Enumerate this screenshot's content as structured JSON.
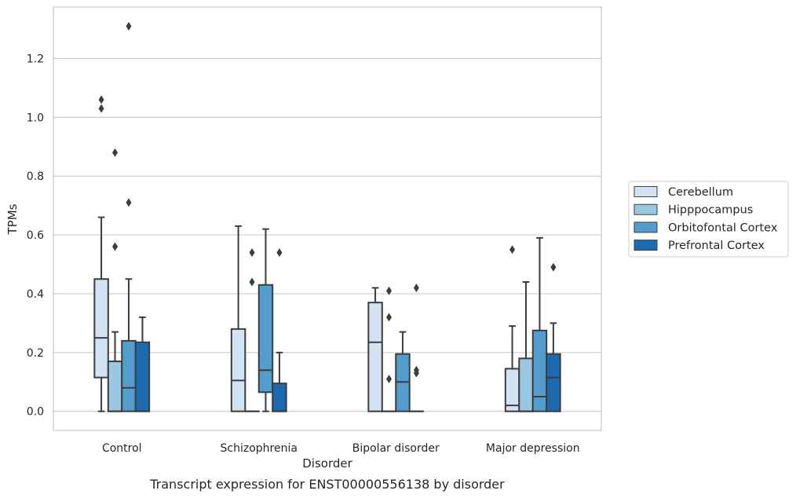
{
  "chart_data": {
    "type": "box",
    "title": "",
    "caption": "Transcript expression for ENST00000556138 by disorder",
    "xlabel": "Disorder",
    "ylabel": "TPMs",
    "ylim": [
      -0.065,
      1.375
    ],
    "yticks": [
      0.0,
      0.2,
      0.4,
      0.6,
      0.8,
      1.0,
      1.2
    ],
    "ytick_labels": [
      "0.0",
      "0.2",
      "0.4",
      "0.6",
      "0.8",
      "1.0",
      "1.2"
    ],
    "grid": true,
    "legend_position": "right",
    "categories": [
      "Control",
      "Schizophrenia",
      "Bipolar disorder",
      "Major depression"
    ],
    "series": [
      {
        "name": "Cerebellum",
        "color": "#d2e3f3",
        "boxes": [
          {
            "whislo": 0.0,
            "q1": 0.115,
            "med": 0.25,
            "q3": 0.45,
            "whishi": 0.66,
            "fliers": [
              1.03,
              1.06
            ]
          },
          {
            "whislo": 0.0,
            "q1": 0.0,
            "med": 0.105,
            "q3": 0.28,
            "whishi": 0.63,
            "fliers": []
          },
          {
            "whislo": 0.0,
            "q1": 0.0,
            "med": 0.235,
            "q3": 0.37,
            "whishi": 0.42,
            "fliers": []
          },
          {
            "whislo": 0.0,
            "q1": 0.0,
            "med": 0.02,
            "q3": 0.145,
            "whishi": 0.29,
            "fliers": [
              0.55
            ]
          }
        ]
      },
      {
        "name": "Hipppocampus",
        "color": "#9ac8e0",
        "boxes": [
          {
            "whislo": 0.0,
            "q1": 0.0,
            "med": 0.0,
            "q3": 0.17,
            "whishi": 0.27,
            "fliers": [
              0.56,
              0.88
            ]
          },
          {
            "whislo": 0.0,
            "q1": 0.0,
            "med": 0.0,
            "q3": 0.0,
            "whishi": 0.0,
            "fliers": [
              0.44,
              0.54
            ]
          },
          {
            "whislo": 0.0,
            "q1": 0.0,
            "med": 0.0,
            "q3": 0.0,
            "whishi": 0.0,
            "fliers": [
              0.11,
              0.32,
              0.41
            ]
          },
          {
            "whislo": 0.0,
            "q1": 0.0,
            "med": 0.0,
            "q3": 0.18,
            "whishi": 0.44,
            "fliers": []
          }
        ]
      },
      {
        "name": "Orbitofontal Cortex",
        "color": "#529dcc",
        "boxes": [
          {
            "whislo": 0.0,
            "q1": 0.0,
            "med": 0.08,
            "q3": 0.24,
            "whishi": 0.45,
            "fliers": [
              0.71,
              1.31
            ]
          },
          {
            "whislo": 0.0,
            "q1": 0.065,
            "med": 0.14,
            "q3": 0.43,
            "whishi": 0.62,
            "fliers": []
          },
          {
            "whislo": 0.0,
            "q1": 0.0,
            "med": 0.1,
            "q3": 0.195,
            "whishi": 0.27,
            "fliers": []
          },
          {
            "whislo": 0.0,
            "q1": 0.0,
            "med": 0.05,
            "q3": 0.275,
            "whishi": 0.59,
            "fliers": []
          }
        ]
      },
      {
        "name": "Prefrontal Cortex",
        "color": "#1c6aaf",
        "boxes": [
          {
            "whislo": 0.0,
            "q1": 0.0,
            "med": 0.0,
            "q3": 0.235,
            "whishi": 0.32,
            "fliers": []
          },
          {
            "whislo": 0.0,
            "q1": 0.0,
            "med": 0.0,
            "q3": 0.095,
            "whishi": 0.2,
            "fliers": [
              0.54
            ]
          },
          {
            "whislo": 0.0,
            "q1": 0.0,
            "med": 0.0,
            "q3": 0.0,
            "whishi": 0.0,
            "fliers": [
              0.13,
              0.14,
              0.42
            ]
          },
          {
            "whislo": 0.0,
            "q1": 0.0,
            "med": 0.115,
            "q3": 0.195,
            "whishi": 0.3,
            "fliers": [
              0.49
            ]
          }
        ]
      }
    ]
  }
}
